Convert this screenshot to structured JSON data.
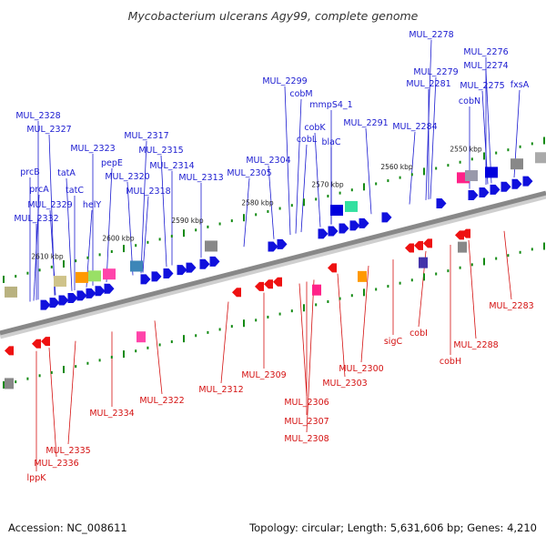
{
  "title": "Mycobacterium ulcerans Agy99, complete genome",
  "footer": {
    "accession_label": "Accession:",
    "accession": "NC_008611",
    "topology_label": "Topology:",
    "topology": "circular",
    "length_label": "Length:",
    "length": "5,631,606 bp",
    "genes_label": "Genes:",
    "genes": "4,210"
  },
  "colors": {
    "forward": "#1010dd",
    "reverse": "#ee1111",
    "axis": "#888888",
    "tick": "#138a13",
    "label_forward": "#1a1ad0",
    "label_reverse": "#d41010"
  },
  "scale_labels": [
    "2610 kbp",
    "2600 kbp",
    "2590 kbp",
    "2580 kbp",
    "2570 kbp",
    "2560 kbp",
    "2550 kbp"
  ],
  "forward_labels": [
    "MUL_2278",
    "MUL_2276",
    "MUL_2274",
    "MUL_2279",
    "MUL_2281",
    "MUL_2275",
    "fxsA",
    "cobN",
    "MUL_2299",
    "cobM",
    "mmpS4_1",
    "cobK",
    "cobL",
    "blaC",
    "MUL_2291",
    "MUL_2284",
    "MUL_2328",
    "MUL_2327",
    "MUL_2317",
    "MUL_2323",
    "MUL_2315",
    "pepE",
    "MUL_2314",
    "MUL_2320",
    "MUL_2318",
    "MUL_2313",
    "MUL_2304",
    "MUL_2305",
    "prcB",
    "tatA",
    "prcA",
    "tatC",
    "MUL_2329",
    "helY",
    "MUL_2332"
  ],
  "reverse_labels": [
    "MUL_2283",
    "sigC",
    "cobI",
    "MUL_2288",
    "cobH",
    "MUL_2300",
    "MUL_2303",
    "MUL_2309",
    "MUL_2312",
    "MUL_2306",
    "MUL_2307",
    "MUL_2308",
    "MUL_2322",
    "MUL_2334",
    "MUL_2335",
    "MUL_2336",
    "lppK"
  ]
}
